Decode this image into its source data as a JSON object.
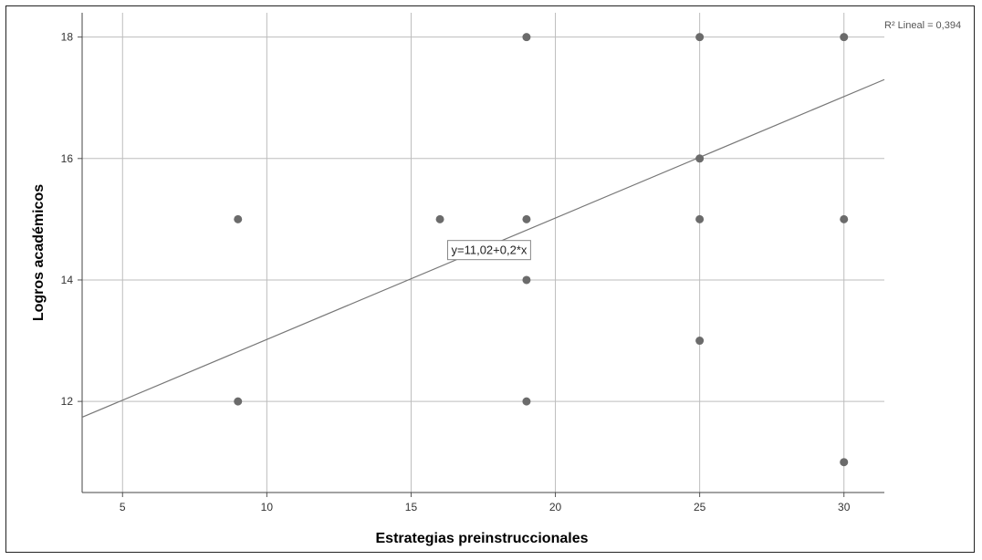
{
  "chart_data": {
    "type": "scatter",
    "xlabel": "Estrategias preinstruccionales",
    "ylabel": "Logros académicos",
    "x_ticks": [
      5,
      10,
      15,
      20,
      25,
      30
    ],
    "y_ticks": [
      12,
      14,
      16,
      18
    ],
    "xlim": [
      3.6,
      31.4
    ],
    "ylim": [
      10.5,
      18.4
    ],
    "grid": true,
    "points": [
      {
        "x": 9,
        "y": 15
      },
      {
        "x": 9,
        "y": 12
      },
      {
        "x": 16,
        "y": 15
      },
      {
        "x": 19,
        "y": 18
      },
      {
        "x": 19,
        "y": 15
      },
      {
        "x": 19,
        "y": 14
      },
      {
        "x": 19,
        "y": 12
      },
      {
        "x": 25,
        "y": 18
      },
      {
        "x": 25,
        "y": 16
      },
      {
        "x": 25,
        "y": 15
      },
      {
        "x": 25,
        "y": 13
      },
      {
        "x": 30,
        "y": 18
      },
      {
        "x": 30,
        "y": 15
      },
      {
        "x": 30,
        "y": 11
      }
    ],
    "fit_line": {
      "intercept": 11.02,
      "slope": 0.2
    },
    "fit_label": "y=11,02+0,2*x",
    "r2_label": "R² Lineal = 0,394"
  }
}
